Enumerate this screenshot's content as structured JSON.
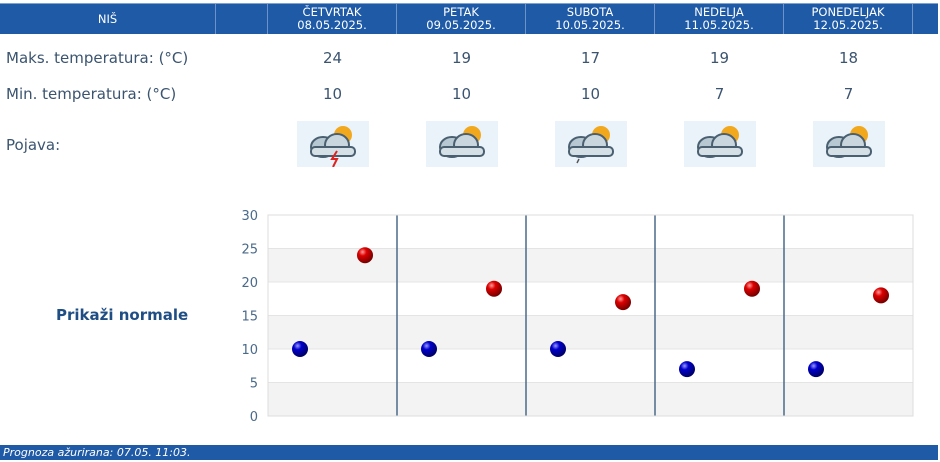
{
  "header": {
    "city": "NIŠ",
    "days": [
      {
        "name": "ČETVRTAK",
        "date": "08.05.2025."
      },
      {
        "name": "PETAK",
        "date": "09.05.2025."
      },
      {
        "name": "SUBOTA",
        "date": "10.05.2025."
      },
      {
        "name": "NEDELJA",
        "date": "11.05.2025."
      },
      {
        "name": "PONEDELJAK",
        "date": "12.05.2025."
      }
    ]
  },
  "rows": {
    "max_label": "Maks. temperatura: (°C)",
    "min_label": "Min. temperatura: (°C)",
    "phen_label": "Pojava:",
    "max": [
      "24",
      "19",
      "17",
      "19",
      "18"
    ],
    "min": [
      "10",
      "10",
      "10",
      "7",
      "7"
    ],
    "icons": [
      "cloud-sun-thunder-icon",
      "cloud-sun-icon",
      "cloud-sun-rain-icon",
      "cloud-sun-icon",
      "cloud-sun-icon"
    ]
  },
  "show_normals": "Prikaži normale",
  "footer": "Prognoza ažurirana:  07.05. 11:03.",
  "chart_data": {
    "type": "scatter",
    "ylim": [
      0,
      30
    ],
    "yticks": [
      "0",
      "5",
      "10",
      "15",
      "20",
      "25",
      "30"
    ],
    "series": [
      {
        "name": "min",
        "color": "#0000cc",
        "values": [
          10,
          10,
          10,
          7,
          7
        ]
      },
      {
        "name": "max",
        "color": "#cc0000",
        "values": [
          24,
          19,
          17,
          19,
          18
        ]
      }
    ]
  }
}
